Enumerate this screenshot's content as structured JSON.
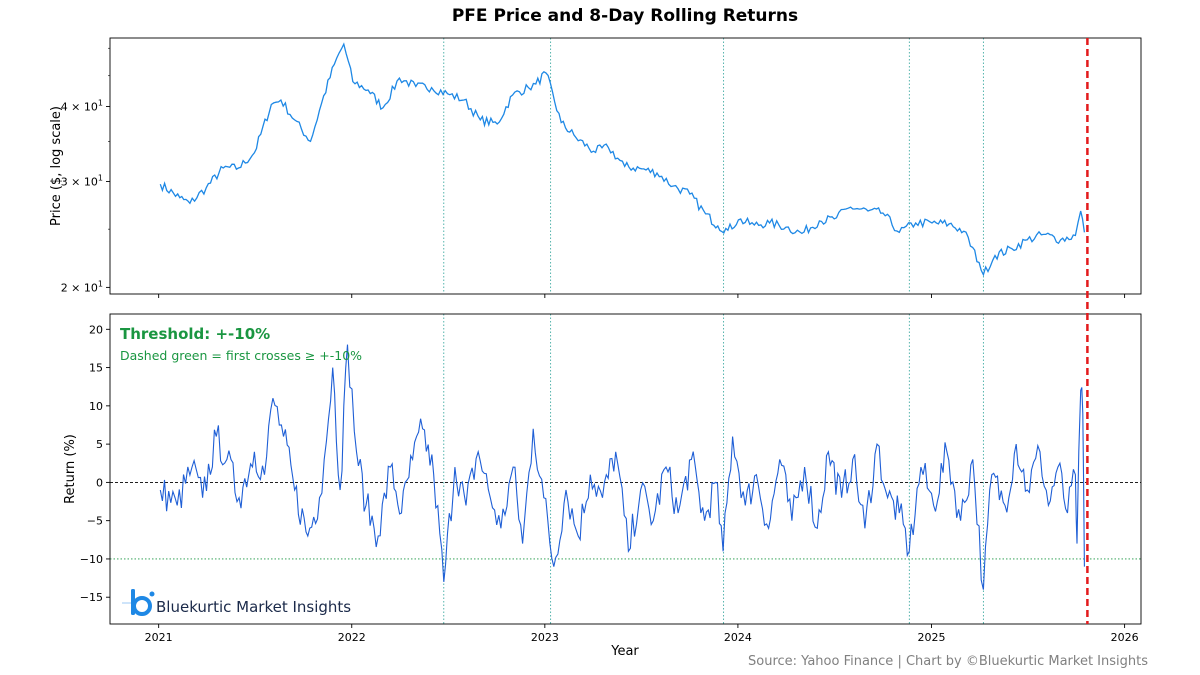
{
  "title": "PFE Price and 8-Day Rolling Returns",
  "source": "Source: Yahoo Finance | Chart by ©Bluekurtic Market Insights",
  "brand": {
    "name": "Bluekurtic Market Insights",
    "logo_letter": "b",
    "color": "#1e88e5"
  },
  "annotation": {
    "title": "Threshold: +-10%",
    "subtitle": "Dashed green = first crosses ≥ +-10%",
    "color": "#1a9641"
  },
  "colors": {
    "price_line": "#1e88e5",
    "return_line": "#1f5fd6",
    "threshold": "#1a9641",
    "event_line": "#2aa198",
    "current_marker": "#e31a1c"
  },
  "chart_data": [
    {
      "type": "line",
      "panel": "price",
      "ylabel": "Price ($, log scale)",
      "yscale": "log",
      "ylim": [
        19.5,
        52
      ],
      "yticks": [
        {
          "value": 20,
          "label": "2 × 10^1"
        },
        {
          "value": 30,
          "label": "3 × 10^1"
        },
        {
          "value": 40,
          "label": "4 × 10^1"
        }
      ],
      "xlim": [
        "2020-10-01",
        "2026-02-01"
      ],
      "grid": false,
      "series": [
        {
          "x": [
            "2021-01-04",
            "2021-02-10",
            "2021-03-01",
            "2021-04-01",
            "2021-05-03",
            "2021-06-01",
            "2021-07-01",
            "2021-08-02",
            "2021-08-20",
            "2021-09-15",
            "2021-10-15",
            "2021-11-05",
            "2021-11-29",
            "2021-12-17",
            "2022-01-03",
            "2022-02-01",
            "2022-03-01",
            "2022-04-01",
            "2022-05-02",
            "2022-06-01",
            "2022-07-01",
            "2022-08-01",
            "2022-09-01",
            "2022-10-03",
            "2022-11-01",
            "2022-12-01",
            "2022-12-15",
            "2023-01-03",
            "2023-02-01",
            "2023-03-01",
            "2023-04-03",
            "2023-05-01",
            "2023-06-01",
            "2023-07-03",
            "2023-08-01",
            "2023-09-01",
            "2023-10-02",
            "2023-11-01",
            "2023-11-24",
            "2023-12-13",
            "2024-01-02",
            "2024-02-01",
            "2024-03-01",
            "2024-04-01",
            "2024-05-01",
            "2024-06-03",
            "2024-07-01",
            "2024-08-01",
            "2024-09-03",
            "2024-10-01",
            "2024-11-01",
            "2024-12-02",
            "2025-01-02",
            "2025-02-03",
            "2025-03-03",
            "2025-04-01",
            "2025-04-09",
            "2025-05-01",
            "2025-06-02",
            "2025-07-01",
            "2025-08-01",
            "2025-09-02",
            "2025-09-30",
            "2025-10-10",
            "2025-10-17"
          ],
          "values": [
            29.7,
            28.2,
            27.6,
            29.3,
            31.6,
            31.6,
            33.5,
            40.3,
            41.0,
            38.0,
            35.0,
            40.5,
            47.0,
            50.8,
            44.0,
            42.6,
            39.8,
            44.6,
            43.2,
            43.0,
            42.0,
            41.0,
            38.0,
            37.4,
            41.8,
            43.0,
            43.6,
            45.5,
            37.6,
            35.5,
            33.7,
            34.2,
            31.8,
            31.5,
            31.0,
            29.5,
            28.6,
            26.5,
            25.3,
            24.9,
            25.9,
            25.4,
            25.6,
            25.2,
            24.6,
            25.8,
            26.0,
            27.2,
            26.8,
            26.6,
            24.7,
            25.6,
            25.6,
            25.5,
            24.8,
            22.0,
            21.0,
            22.6,
            23.2,
            24.0,
            24.5,
            24.0,
            24.4,
            26.8,
            24.7
          ]
        }
      ]
    },
    {
      "type": "line",
      "panel": "returns",
      "xlabel": "Year",
      "ylabel": "Return (%)",
      "ylim": [
        -18.5,
        22
      ],
      "yticks": [
        -15,
        -10,
        -5,
        0,
        5,
        10,
        15,
        20
      ],
      "xlim": [
        "2020-10-01",
        "2026-02-01"
      ],
      "xticks": [
        "2021",
        "2022",
        "2023",
        "2024",
        "2025",
        "2026"
      ],
      "threshold": -10,
      "zero_line": 0,
      "grid": false,
      "series": [
        {
          "x": [
            "2021-01-04",
            "2021-02-05",
            "2021-03-05",
            "2021-03-25",
            "2021-04-20",
            "2021-05-10",
            "2021-06-02",
            "2021-07-01",
            "2021-07-20",
            "2021-08-05",
            "2021-08-25",
            "2021-09-15",
            "2021-10-10",
            "2021-11-01",
            "2021-11-10",
            "2021-11-26",
            "2021-12-10",
            "2021-12-24",
            "2022-01-10",
            "2022-01-28",
            "2022-02-20",
            "2022-03-15",
            "2022-04-05",
            "2022-04-26",
            "2022-05-15",
            "2022-06-05",
            "2022-06-24",
            "2022-07-15",
            "2022-08-05",
            "2022-08-28",
            "2022-09-20",
            "2022-10-10",
            "2022-11-02",
            "2022-11-20",
            "2022-12-10",
            "2022-12-30",
            "2023-01-18",
            "2023-02-10",
            "2023-03-05",
            "2023-03-28",
            "2023-04-20",
            "2023-05-15",
            "2023-06-08",
            "2023-07-01",
            "2023-07-25",
            "2023-08-18",
            "2023-09-10",
            "2023-10-05",
            "2023-10-30",
            "2023-11-20",
            "2023-12-04",
            "2023-12-22",
            "2024-01-15",
            "2024-02-05",
            "2024-02-28",
            "2024-03-20",
            "2024-04-12",
            "2024-05-06",
            "2024-05-30",
            "2024-06-20",
            "2024-07-15",
            "2024-08-05",
            "2024-08-28",
            "2024-09-20",
            "2024-10-10",
            "2024-11-01",
            "2024-11-20",
            "2024-12-12",
            "2025-01-05",
            "2025-01-30",
            "2025-02-25",
            "2025-03-20",
            "2025-04-09",
            "2025-04-25",
            "2025-05-20",
            "2025-06-10",
            "2025-07-01",
            "2025-07-25",
            "2025-08-10",
            "2025-08-28",
            "2025-09-15",
            "2025-09-30",
            "2025-10-03",
            "2025-10-10",
            "2025-10-14",
            "2025-10-17"
          ],
          "values": [
            -1,
            -3,
            2,
            -2,
            6,
            3,
            -2,
            4,
            1,
            11,
            6,
            -1,
            -7,
            -2,
            3,
            15,
            -1,
            18,
            4,
            -3,
            -7,
            2,
            -4,
            3,
            7,
            1,
            -13,
            2,
            -3,
            4,
            -2,
            -6,
            2,
            -8,
            7,
            -2,
            -11,
            -1,
            -7,
            1,
            -2,
            4,
            -9,
            -1,
            -5,
            2,
            -4,
            3,
            -5,
            0,
            -9,
            6,
            -3,
            1,
            -6,
            3,
            -5,
            2,
            -6,
            4,
            -2,
            3,
            -6,
            5,
            -2,
            -4,
            -9,
            2,
            -3,
            4,
            -5,
            3,
            -14,
            1,
            -3,
            5,
            -1,
            4,
            -3,
            2,
            -4,
            1,
            -8,
            12,
            9,
            -11
          ]
        }
      ]
    }
  ],
  "event_dates": [
    "2022-06-24",
    "2023-01-12",
    "2023-12-05",
    "2024-11-20",
    "2025-04-09"
  ],
  "current_date": "2025-10-17"
}
